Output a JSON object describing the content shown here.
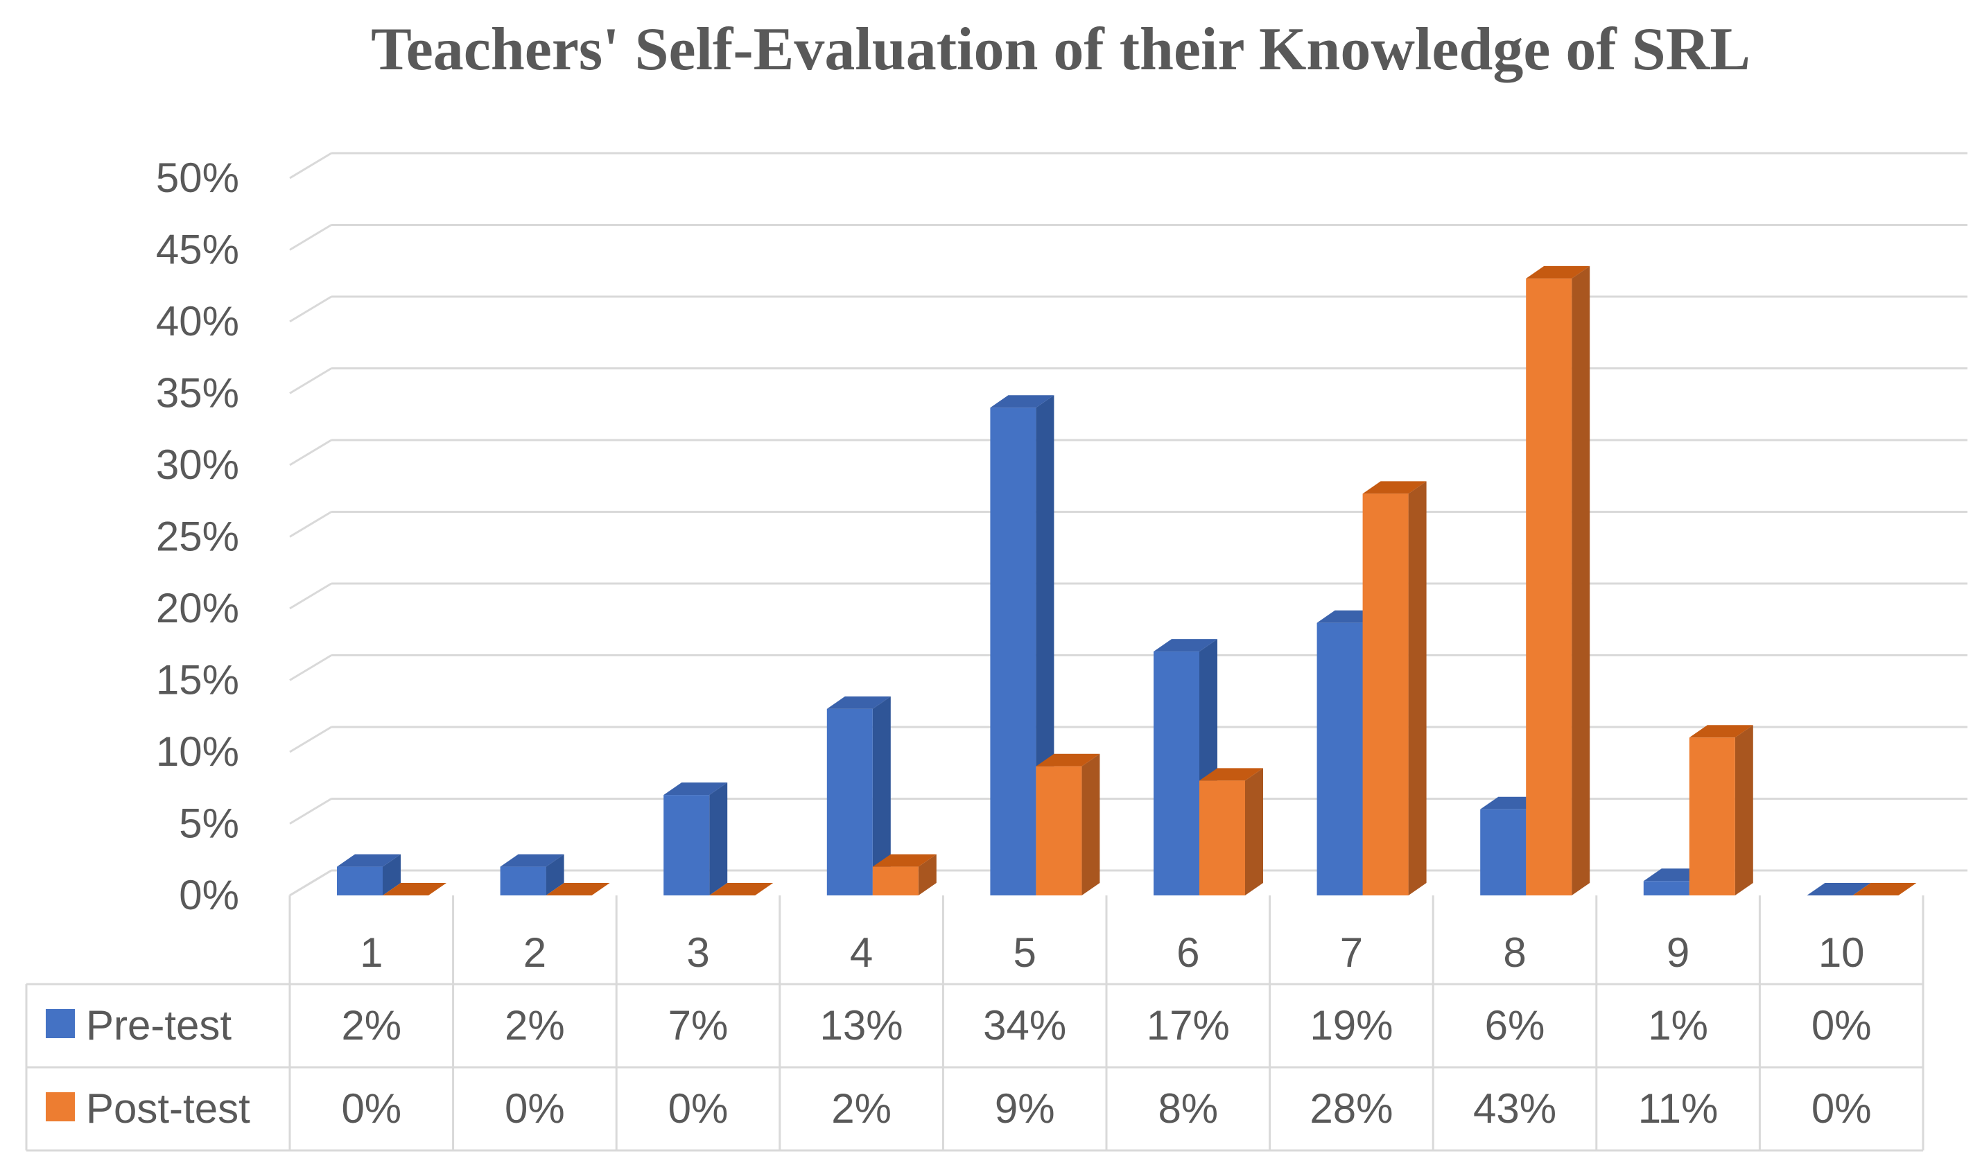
{
  "chart_data": {
    "type": "bar",
    "title": "Teachers' Self-Evaluation of their Knowledge of SRL",
    "categories": [
      "1",
      "2",
      "3",
      "4",
      "5",
      "6",
      "7",
      "8",
      "9",
      "10"
    ],
    "series": [
      {
        "name": "Pre-test",
        "values": [
          2,
          2,
          7,
          13,
          34,
          17,
          19,
          6,
          1,
          0
        ],
        "labels": [
          "2%",
          "2%",
          "7%",
          "13%",
          "34%",
          "17%",
          "19%",
          "6%",
          "1%",
          "0%"
        ],
        "colors": {
          "front": "#4472C4",
          "side": "#2F5597",
          "top": "#3A62AC"
        }
      },
      {
        "name": "Post-test",
        "values": [
          0,
          0,
          0,
          2,
          9,
          8,
          28,
          43,
          11,
          0
        ],
        "labels": [
          "0%",
          "0%",
          "0%",
          "2%",
          "9%",
          "8%",
          "28%",
          "43%",
          "11%",
          "0%"
        ],
        "colors": {
          "front": "#ED7D31",
          "side": "#A9561F",
          "top": "#C55A11"
        }
      }
    ],
    "y_ticks": [
      "0%",
      "5%",
      "10%",
      "15%",
      "20%",
      "25%",
      "30%",
      "35%",
      "40%",
      "45%",
      "50%"
    ],
    "ylim": [
      0,
      50
    ],
    "grid": true,
    "legend": "data-table",
    "colors": {
      "grid": "#D9D9D9",
      "text": "#595959",
      "title": "#595959"
    }
  }
}
